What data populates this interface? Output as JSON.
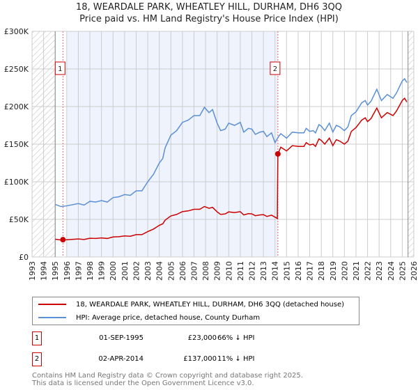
{
  "title": "18, WEARDALE PARK, WHEATLEY HILL, DURHAM, DH6 3QQ",
  "subtitle": "Price paid vs. HM Land Registry's House Price Index (HPI)",
  "chart_data": {
    "type": "line",
    "title": "18, WEARDALE PARK, WHEATLEY HILL, DURHAM, DH6 3QQ",
    "subtitle": "Price paid vs. HM Land Registry's House Price Index (HPI)",
    "xlim": [
      1993,
      2026
    ],
    "ylim": [
      0,
      300000
    ],
    "y_ticks": [
      0,
      50000,
      100000,
      150000,
      200000,
      250000,
      300000
    ],
    "y_tick_labels": [
      "£0",
      "£50K",
      "£100K",
      "£150K",
      "£200K",
      "£250K",
      "£300K"
    ],
    "x_ticks": [
      "1993",
      "1994",
      "1995",
      "1996",
      "1997",
      "1998",
      "1999",
      "2000",
      "2001",
      "2002",
      "2003",
      "2004",
      "2005",
      "2006",
      "2007",
      "2008",
      "2009",
      "2010",
      "2011",
      "2012",
      "2013",
      "2014",
      "2015",
      "2016",
      "2017",
      "2018",
      "2019",
      "2020",
      "2021",
      "2022",
      "2023",
      "2024",
      "2025",
      "2026"
    ],
    "grid": true,
    "colors": {
      "price": "#cc0000",
      "hpi": "#5b8fd6",
      "shade": "#eef3fd"
    },
    "series": [
      {
        "name": "18, WEARDALE PARK, WHEATLEY HILL, DURHAM, DH6 3QQ (detached house)",
        "x": [
          1995.0,
          1995.5,
          1996,
          1997,
          1997.5,
          1998,
          1998.5,
          1999,
          1999.5,
          2000,
          2000.5,
          2001,
          2001.5,
          2002,
          2002.5,
          2003,
          2003.5,
          2004,
          2004.3,
          2004.5,
          2005,
          2005.5,
          2006,
          2006.5,
          2007,
          2007.5,
          2007.9,
          2008.3,
          2008.6,
          2009,
          2009.3,
          2009.7,
          2010,
          2010.5,
          2011,
          2011.3,
          2011.7,
          2012,
          2012.3,
          2012.7,
          2013,
          2013.3,
          2013.7,
          2014.2,
          2014.25,
          2014.5,
          2015,
          2015.5,
          2016,
          2016.5,
          2016.7,
          2017,
          2017.3,
          2017.5,
          2017.8,
          2018,
          2018.3,
          2018.7,
          2019,
          2019.3,
          2019.6,
          2020,
          2020.3,
          2020.6,
          2021,
          2021.5,
          2021.8,
          2022,
          2022.3,
          2022.8,
          2023.2,
          2023.7,
          2024.2,
          2024.5,
          2025,
          2025.2,
          2025.4
        ],
        "y": [
          23600,
          22600,
          22900,
          23900,
          23300,
          24900,
          24600,
          25300,
          24600,
          26600,
          27000,
          28000,
          27600,
          29700,
          29700,
          33700,
          37100,
          42100,
          44100,
          48900,
          54600,
          56600,
          60300,
          61300,
          63400,
          63400,
          67100,
          64700,
          66000,
          60000,
          56600,
          57300,
          60000,
          59000,
          60300,
          55900,
          57600,
          57300,
          54900,
          55900,
          56300,
          53900,
          55600,
          51200,
          137000,
          146000,
          141000,
          148000,
          147000,
          147000,
          152000,
          149000,
          150000,
          147000,
          157000,
          155000,
          150000,
          158000,
          148000,
          156000,
          154000,
          150000,
          154000,
          167000,
          172000,
          182000,
          185000,
          180000,
          184000,
          198000,
          185000,
          192000,
          188000,
          194000,
          208000,
          211000,
          206000
        ]
      },
      {
        "name": "HPI: Average price, detached house, County Durham",
        "x": [
          1995.0,
          1995.5,
          1996,
          1997,
          1997.5,
          1998,
          1998.5,
          1999,
          1999.5,
          2000,
          2000.5,
          2001,
          2001.5,
          2002,
          2002.5,
          2003,
          2003.5,
          2004,
          2004.3,
          2004.5,
          2005,
          2005.5,
          2006,
          2006.5,
          2007,
          2007.5,
          2007.9,
          2008.3,
          2008.6,
          2009,
          2009.3,
          2009.7,
          2010,
          2010.5,
          2011,
          2011.3,
          2011.7,
          2012,
          2012.3,
          2012.7,
          2013,
          2013.3,
          2013.7,
          2014.0,
          2014.3,
          2014.5,
          2015,
          2015.5,
          2016,
          2016.5,
          2016.7,
          2017,
          2017.3,
          2017.5,
          2017.8,
          2018,
          2018.3,
          2018.7,
          2019,
          2019.3,
          2019.6,
          2020,
          2020.3,
          2020.6,
          2021,
          2021.5,
          2021.8,
          2022,
          2022.3,
          2022.8,
          2023.2,
          2023.7,
          2024.2,
          2024.5,
          2025,
          2025.2,
          2025.4
        ],
        "y": [
          70000,
          67000,
          68000,
          71000,
          69000,
          74000,
          73000,
          75000,
          73000,
          79000,
          80000,
          83000,
          82000,
          88000,
          88000,
          100000,
          110000,
          125000,
          131000,
          145000,
          162000,
          168000,
          179000,
          182000,
          188000,
          188000,
          199000,
          192000,
          196000,
          178000,
          168000,
          170000,
          178000,
          175000,
          179000,
          166000,
          171000,
          170000,
          163000,
          166000,
          167000,
          160000,
          165000,
          152000,
          160000,
          164000,
          158000,
          166000,
          165000,
          165000,
          171000,
          167000,
          168000,
          165000,
          176000,
          174000,
          168000,
          178000,
          166000,
          175000,
          173000,
          168000,
          173000,
          188000,
          193000,
          205000,
          208000,
          202000,
          207000,
          223000,
          208000,
          216000,
          211000,
          218000,
          234000,
          237000,
          232000
        ]
      }
    ],
    "sales": [
      {
        "label": "1",
        "x": 1995.67,
        "y": 23000
      },
      {
        "label": "2",
        "x": 2014.25,
        "y": 137000
      }
    ],
    "shaded_range": [
      1996,
      2014.25
    ],
    "hatched_ranges": [
      [
        1993,
        1995
      ],
      [
        2025.5,
        2026
      ]
    ]
  },
  "legend": {
    "price_label": "18, WEARDALE PARK, WHEATLEY HILL, DURHAM, DH6 3QQ (detached house)",
    "hpi_label": "HPI: Average price, detached house, County Durham"
  },
  "transactions": [
    {
      "num": "1",
      "date": "01-SEP-1995",
      "price": "£23,000",
      "hpi": "66% ↓ HPI"
    },
    {
      "num": "2",
      "date": "02-APR-2014",
      "price": "£137,000",
      "hpi": "11% ↓ HPI"
    }
  ],
  "footer": {
    "line1": "Contains HM Land Registry data © Crown copyright and database right 2025.",
    "line2": "This data is licensed under the Open Government Licence v3.0."
  }
}
